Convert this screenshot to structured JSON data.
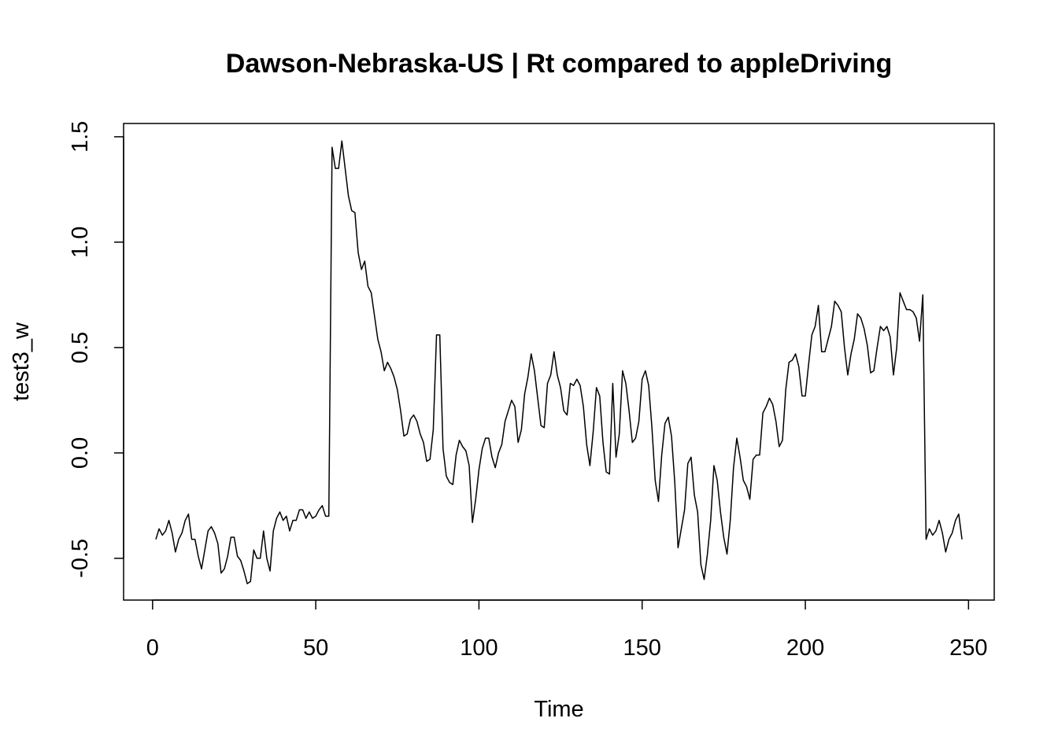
{
  "chart_data": {
    "type": "line",
    "title": "Dawson-Nebraska-US | Rt compared to appleDriving",
    "xlabel": "Time",
    "ylabel": "test3_w",
    "x": [
      1,
      2,
      3,
      4,
      5,
      6,
      7,
      8,
      9,
      10,
      11,
      12,
      13,
      14,
      15,
      16,
      17,
      18,
      19,
      20,
      21,
      22,
      23,
      24,
      25,
      26,
      27,
      28,
      29,
      30,
      31,
      32,
      33,
      34,
      35,
      36,
      37,
      38,
      39,
      40,
      41,
      42,
      43,
      44,
      45,
      46,
      47,
      48,
      49,
      50,
      51,
      52,
      53,
      54,
      55,
      56,
      57,
      58,
      59,
      60,
      61,
      62,
      63,
      64,
      65,
      66,
      67,
      68,
      69,
      70,
      71,
      72,
      73,
      74,
      75,
      76,
      77,
      78,
      79,
      80,
      81,
      82,
      83,
      84,
      85,
      86,
      87,
      88,
      89,
      90,
      91,
      92,
      93,
      94,
      95,
      96,
      97,
      98,
      99,
      100,
      101,
      102,
      103,
      104,
      105,
      106,
      107,
      108,
      109,
      110,
      111,
      112,
      113,
      114,
      115,
      116,
      117,
      118,
      119,
      120,
      121,
      122,
      123,
      124,
      125,
      126,
      127,
      128,
      129,
      130,
      131,
      132,
      133,
      134,
      135,
      136,
      137,
      138,
      139,
      140,
      141,
      142,
      143,
      144,
      145,
      146,
      147,
      148,
      149,
      150,
      151,
      152,
      153,
      154,
      155,
      156,
      157,
      158,
      159,
      160,
      161,
      162,
      163,
      164,
      165,
      166,
      167,
      168,
      169,
      170,
      171,
      172,
      173,
      174,
      175,
      176,
      177,
      178,
      179,
      180,
      181,
      182,
      183,
      184,
      185,
      186,
      187,
      188,
      189,
      190,
      191,
      192,
      193,
      194,
      195,
      196,
      197,
      198,
      199,
      200,
      201,
      202,
      203,
      204,
      205,
      206,
      207,
      208,
      209,
      210,
      211,
      212,
      213,
      214,
      215,
      216,
      217,
      218,
      219,
      220,
      221,
      222,
      223,
      224,
      225,
      226,
      227,
      228,
      229,
      230,
      231,
      232,
      233,
      234,
      235,
      236,
      237,
      238,
      239,
      240,
      241,
      242,
      243,
      244,
      245,
      246,
      247,
      248
    ],
    "series": [
      {
        "color": "#000000",
        "values": [
          -0.41,
          -0.36,
          -0.39,
          -0.37,
          -0.32,
          -0.38,
          -0.47,
          -0.41,
          -0.38,
          -0.32,
          -0.29,
          -0.41,
          -0.41,
          -0.49,
          -0.55,
          -0.46,
          -0.37,
          -0.35,
          -0.38,
          -0.43,
          -0.57,
          -0.55,
          -0.49,
          -0.4,
          -0.4,
          -0.49,
          -0.51,
          -0.56,
          -0.62,
          -0.61,
          -0.46,
          -0.5,
          -0.5,
          -0.37,
          -0.5,
          -0.56,
          -0.37,
          -0.31,
          -0.28,
          -0.32,
          -0.3,
          -0.37,
          -0.32,
          -0.32,
          -0.27,
          -0.27,
          -0.31,
          -0.28,
          -0.31,
          -0.3,
          -0.27,
          -0.25,
          -0.3,
          -0.3,
          1.45,
          1.35,
          1.35,
          1.48,
          1.35,
          1.22,
          1.15,
          1.14,
          0.95,
          0.87,
          0.91,
          0.79,
          0.76,
          0.65,
          0.54,
          0.48,
          0.39,
          0.43,
          0.4,
          0.36,
          0.3,
          0.2,
          0.08,
          0.09,
          0.16,
          0.18,
          0.15,
          0.09,
          0.05,
          -0.04,
          -0.03,
          0.11,
          0.56,
          0.56,
          0.02,
          -0.11,
          -0.14,
          -0.15,
          -0.01,
          0.06,
          0.03,
          0.01,
          -0.06,
          -0.33,
          -0.22,
          -0.08,
          0.02,
          0.07,
          0.07,
          -0.02,
          -0.07,
          0.0,
          0.04,
          0.15,
          0.2,
          0.25,
          0.22,
          0.05,
          0.11,
          0.28,
          0.36,
          0.47,
          0.39,
          0.26,
          0.13,
          0.12,
          0.33,
          0.37,
          0.48,
          0.37,
          0.31,
          0.2,
          0.18,
          0.33,
          0.32,
          0.35,
          0.32,
          0.22,
          0.04,
          -0.06,
          0.1,
          0.31,
          0.27,
          0.05,
          -0.09,
          -0.1,
          0.33,
          -0.02,
          0.09,
          0.39,
          0.33,
          0.2,
          0.05,
          0.07,
          0.15,
          0.35,
          0.39,
          0.32,
          0.12,
          -0.13,
          -0.23,
          -0.01,
          0.14,
          0.17,
          0.08,
          -0.14,
          -0.45,
          -0.36,
          -0.27,
          -0.05,
          -0.02,
          -0.2,
          -0.28,
          -0.53,
          -0.6,
          -0.48,
          -0.32,
          -0.06,
          -0.13,
          -0.28,
          -0.4,
          -0.48,
          -0.32,
          -0.07,
          0.07,
          -0.02,
          -0.13,
          -0.16,
          -0.22,
          -0.03,
          -0.01,
          -0.01,
          0.19,
          0.22,
          0.26,
          0.23,
          0.15,
          0.03,
          0.06,
          0.3,
          0.43,
          0.44,
          0.47,
          0.41,
          0.27,
          0.27,
          0.42,
          0.56,
          0.6,
          0.7,
          0.48,
          0.48,
          0.54,
          0.6,
          0.72,
          0.7,
          0.67,
          0.5,
          0.37,
          0.47,
          0.54,
          0.66,
          0.64,
          0.59,
          0.51,
          0.38,
          0.39,
          0.5,
          0.6,
          0.58,
          0.6,
          0.55,
          0.37,
          0.5,
          0.76,
          0.72,
          0.68,
          0.68,
          0.67,
          0.64,
          0.53,
          0.75,
          -0.41,
          -0.36,
          -0.39,
          -0.37,
          -0.32,
          -0.38,
          -0.47,
          -0.41,
          -0.38,
          -0.32,
          -0.29,
          -0.41
        ]
      }
    ],
    "xlim": [
      -8.88,
      257.88
    ],
    "xticks": [
      0,
      50,
      100,
      150,
      200,
      250
    ],
    "ylim": [
      -0.698,
      1.563
    ],
    "yticks": [
      {
        "value": -0.5,
        "label": "-0.5"
      },
      {
        "value": 0,
        "label": "0.0"
      },
      {
        "value": 0.5,
        "label": "0.5"
      },
      {
        "value": 1,
        "label": "1.0"
      },
      {
        "value": 1.5,
        "label": "1.5"
      }
    ]
  }
}
